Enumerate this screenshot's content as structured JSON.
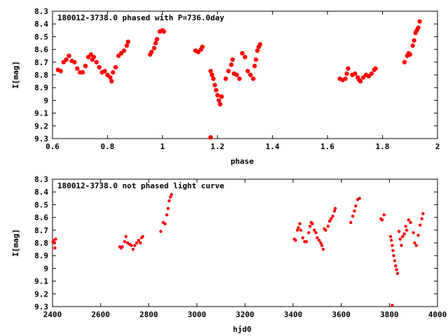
{
  "chart_data": [
    {
      "type": "scatter",
      "title": "180012-3738.0 phased with P=736.0day",
      "xlabel": "phase",
      "ylabel": "I[mag]",
      "xlim": [
        0.6,
        2.0
      ],
      "ylim": [
        8.3,
        9.3
      ],
      "y_inverted": true,
      "grid": false,
      "marker_color": "#ff0000",
      "xticks": [
        "0.6",
        "0.8",
        "1",
        "1.2",
        "1.4",
        "1.6",
        "1.8",
        "2"
      ],
      "xtick_values": [
        0.6,
        0.8,
        1.0,
        1.2,
        1.4,
        1.6,
        1.8,
        2.0
      ],
      "yticks": [
        "8.3",
        "8.4",
        "8.5",
        "8.6",
        "8.7",
        "8.8",
        "8.9",
        "9",
        "9.1",
        "9.2",
        "9.3"
      ],
      "ytick_values": [
        8.3,
        8.4,
        8.5,
        8.6,
        8.7,
        8.8,
        8.9,
        9.0,
        9.1,
        9.2,
        9.3
      ],
      "points": [
        [
          0.62,
          8.76
        ],
        [
          0.63,
          8.77
        ],
        [
          0.64,
          8.7
        ],
        [
          0.65,
          8.68
        ],
        [
          0.66,
          8.65
        ],
        [
          0.67,
          8.69
        ],
        [
          0.68,
          8.7
        ],
        [
          0.69,
          8.75
        ],
        [
          0.7,
          8.78
        ],
        [
          0.71,
          8.78
        ],
        [
          0.72,
          8.73
        ],
        [
          0.73,
          8.66
        ],
        [
          0.74,
          8.64
        ],
        [
          0.745,
          8.68
        ],
        [
          0.75,
          8.66
        ],
        [
          0.76,
          8.7
        ],
        [
          0.77,
          8.74
        ],
        [
          0.78,
          8.78
        ],
        [
          0.79,
          8.77
        ],
        [
          0.8,
          8.8
        ],
        [
          0.81,
          8.82
        ],
        [
          0.815,
          8.85
        ],
        [
          0.82,
          8.78
        ],
        [
          0.83,
          8.74
        ],
        [
          0.84,
          8.65
        ],
        [
          0.85,
          8.63
        ],
        [
          0.86,
          8.61
        ],
        [
          0.87,
          8.57
        ],
        [
          0.875,
          8.54
        ],
        [
          0.955,
          8.64
        ],
        [
          0.96,
          8.62
        ],
        [
          0.97,
          8.59
        ],
        [
          0.975,
          8.55
        ],
        [
          0.98,
          8.52
        ],
        [
          0.99,
          8.46
        ],
        [
          1.0,
          8.45
        ],
        [
          1.005,
          8.46
        ],
        [
          1.12,
          8.61
        ],
        [
          1.13,
          8.62
        ],
        [
          1.14,
          8.6
        ],
        [
          1.145,
          8.58
        ],
        [
          1.175,
          8.77
        ],
        [
          1.18,
          8.8
        ],
        [
          1.185,
          8.83
        ],
        [
          1.19,
          8.88
        ],
        [
          1.195,
          8.92
        ],
        [
          1.2,
          8.96
        ],
        [
          1.205,
          9.0
        ],
        [
          1.21,
          9.03
        ],
        [
          1.215,
          8.97
        ],
        [
          1.175,
          9.29
        ],
        [
          1.23,
          8.83
        ],
        [
          1.24,
          8.77
        ],
        [
          1.25,
          8.72
        ],
        [
          1.255,
          8.68
        ],
        [
          1.26,
          8.79
        ],
        [
          1.27,
          8.8
        ],
        [
          1.28,
          8.83
        ],
        [
          1.29,
          8.63
        ],
        [
          1.3,
          8.66
        ],
        [
          1.31,
          8.77
        ],
        [
          1.32,
          8.8
        ],
        [
          1.33,
          8.83
        ],
        [
          1.335,
          8.73
        ],
        [
          1.34,
          8.68
        ],
        [
          1.345,
          8.61
        ],
        [
          1.35,
          8.58
        ],
        [
          1.355,
          8.56
        ],
        [
          1.645,
          8.83
        ],
        [
          1.655,
          8.84
        ],
        [
          1.665,
          8.83
        ],
        [
          1.67,
          8.79
        ],
        [
          1.675,
          8.75
        ],
        [
          1.69,
          8.8
        ],
        [
          1.7,
          8.79
        ],
        [
          1.71,
          8.82
        ],
        [
          1.715,
          8.84
        ],
        [
          1.72,
          8.85
        ],
        [
          1.73,
          8.82
        ],
        [
          1.74,
          8.8
        ],
        [
          1.75,
          8.81
        ],
        [
          1.76,
          8.79
        ],
        [
          1.77,
          8.76
        ],
        [
          1.775,
          8.75
        ],
        [
          1.88,
          8.7
        ],
        [
          1.89,
          8.65
        ],
        [
          1.895,
          8.63
        ],
        [
          1.9,
          8.64
        ],
        [
          1.91,
          8.57
        ],
        [
          1.915,
          8.53
        ],
        [
          1.92,
          8.47
        ],
        [
          1.925,
          8.45
        ],
        [
          1.93,
          8.43
        ],
        [
          1.935,
          8.38
        ]
      ]
    },
    {
      "type": "scatter",
      "title": "180012-3738.0 not phased light curve",
      "xlabel": "hjd0",
      "ylabel": "I[mag]",
      "xlim": [
        2400,
        4000
      ],
      "ylim": [
        8.3,
        9.3
      ],
      "y_inverted": true,
      "grid": false,
      "marker_color": "#ff0000",
      "xticks": [
        "2400",
        "2600",
        "2800",
        "3000",
        "3200",
        "3400",
        "3600",
        "3800",
        "4000"
      ],
      "xtick_values": [
        2400,
        2600,
        2800,
        3000,
        3200,
        3400,
        3600,
        3800,
        4000
      ],
      "yticks": [
        "8.3",
        "8.4",
        "8.5",
        "8.6",
        "8.7",
        "8.8",
        "8.9",
        "9",
        "9.1",
        "9.2",
        "9.3"
      ],
      "ytick_values": [
        8.3,
        8.4,
        8.5,
        8.6,
        8.7,
        8.8,
        8.9,
        9.0,
        9.1,
        9.2,
        9.3
      ],
      "points": [
        [
          2402,
          8.79
        ],
        [
          2405,
          8.78
        ],
        [
          2408,
          8.8
        ],
        [
          2410,
          8.84
        ],
        [
          2413,
          8.77
        ],
        [
          2680,
          8.83
        ],
        [
          2685,
          8.84
        ],
        [
          2690,
          8.83
        ],
        [
          2700,
          8.79
        ],
        [
          2705,
          8.75
        ],
        [
          2712,
          8.8
        ],
        [
          2720,
          8.81
        ],
        [
          2728,
          8.82
        ],
        [
          2735,
          8.85
        ],
        [
          2742,
          8.82
        ],
        [
          2750,
          8.8
        ],
        [
          2758,
          8.78
        ],
        [
          2765,
          8.8
        ],
        [
          2770,
          8.76
        ],
        [
          2775,
          8.75
        ],
        [
          2850,
          8.71
        ],
        [
          2860,
          8.64
        ],
        [
          2868,
          8.65
        ],
        [
          2875,
          8.58
        ],
        [
          2880,
          8.53
        ],
        [
          2885,
          8.47
        ],
        [
          2890,
          8.44
        ],
        [
          2895,
          8.42
        ],
        [
          3405,
          8.77
        ],
        [
          3410,
          8.78
        ],
        [
          3418,
          8.7
        ],
        [
          3422,
          8.68
        ],
        [
          3428,
          8.65
        ],
        [
          3432,
          8.7
        ],
        [
          3440,
          8.76
        ],
        [
          3448,
          8.79
        ],
        [
          3455,
          8.79
        ],
        [
          3465,
          8.72
        ],
        [
          3470,
          8.67
        ],
        [
          3475,
          8.64
        ],
        [
          3480,
          8.65
        ],
        [
          3488,
          8.7
        ],
        [
          3495,
          8.72
        ],
        [
          3500,
          8.76
        ],
        [
          3508,
          8.78
        ],
        [
          3515,
          8.8
        ],
        [
          3520,
          8.82
        ],
        [
          3525,
          8.85
        ],
        [
          3530,
          8.69
        ],
        [
          3535,
          8.7
        ],
        [
          3545,
          8.67
        ],
        [
          3552,
          8.63
        ],
        [
          3558,
          8.61
        ],
        [
          3565,
          8.59
        ],
        [
          3572,
          8.55
        ],
        [
          3575,
          8.53
        ],
        [
          3640,
          8.64
        ],
        [
          3648,
          8.59
        ],
        [
          3655,
          8.55
        ],
        [
          3660,
          8.51
        ],
        [
          3668,
          8.46
        ],
        [
          3676,
          8.45
        ],
        [
          3765,
          8.61
        ],
        [
          3770,
          8.62
        ],
        [
          3778,
          8.58
        ],
        [
          3805,
          8.75
        ],
        [
          3808,
          8.78
        ],
        [
          3812,
          8.82
        ],
        [
          3815,
          8.86
        ],
        [
          3818,
          8.9
        ],
        [
          3822,
          8.94
        ],
        [
          3826,
          8.98
        ],
        [
          3830,
          9.01
        ],
        [
          3834,
          9.04
        ],
        [
          3840,
          8.71
        ],
        [
          3845,
          8.77
        ],
        [
          3850,
          8.82
        ],
        [
          3855,
          8.75
        ],
        [
          3862,
          8.73
        ],
        [
          3868,
          8.67
        ],
        [
          3872,
          8.7
        ],
        [
          3880,
          8.62
        ],
        [
          3888,
          8.64
        ],
        [
          3900,
          8.72
        ],
        [
          3905,
          8.8
        ],
        [
          3912,
          8.82
        ],
        [
          3920,
          8.74
        ],
        [
          3928,
          8.66
        ],
        [
          3935,
          8.61
        ],
        [
          3940,
          8.57
        ],
        [
          3812,
          9.29
        ]
      ]
    }
  ]
}
